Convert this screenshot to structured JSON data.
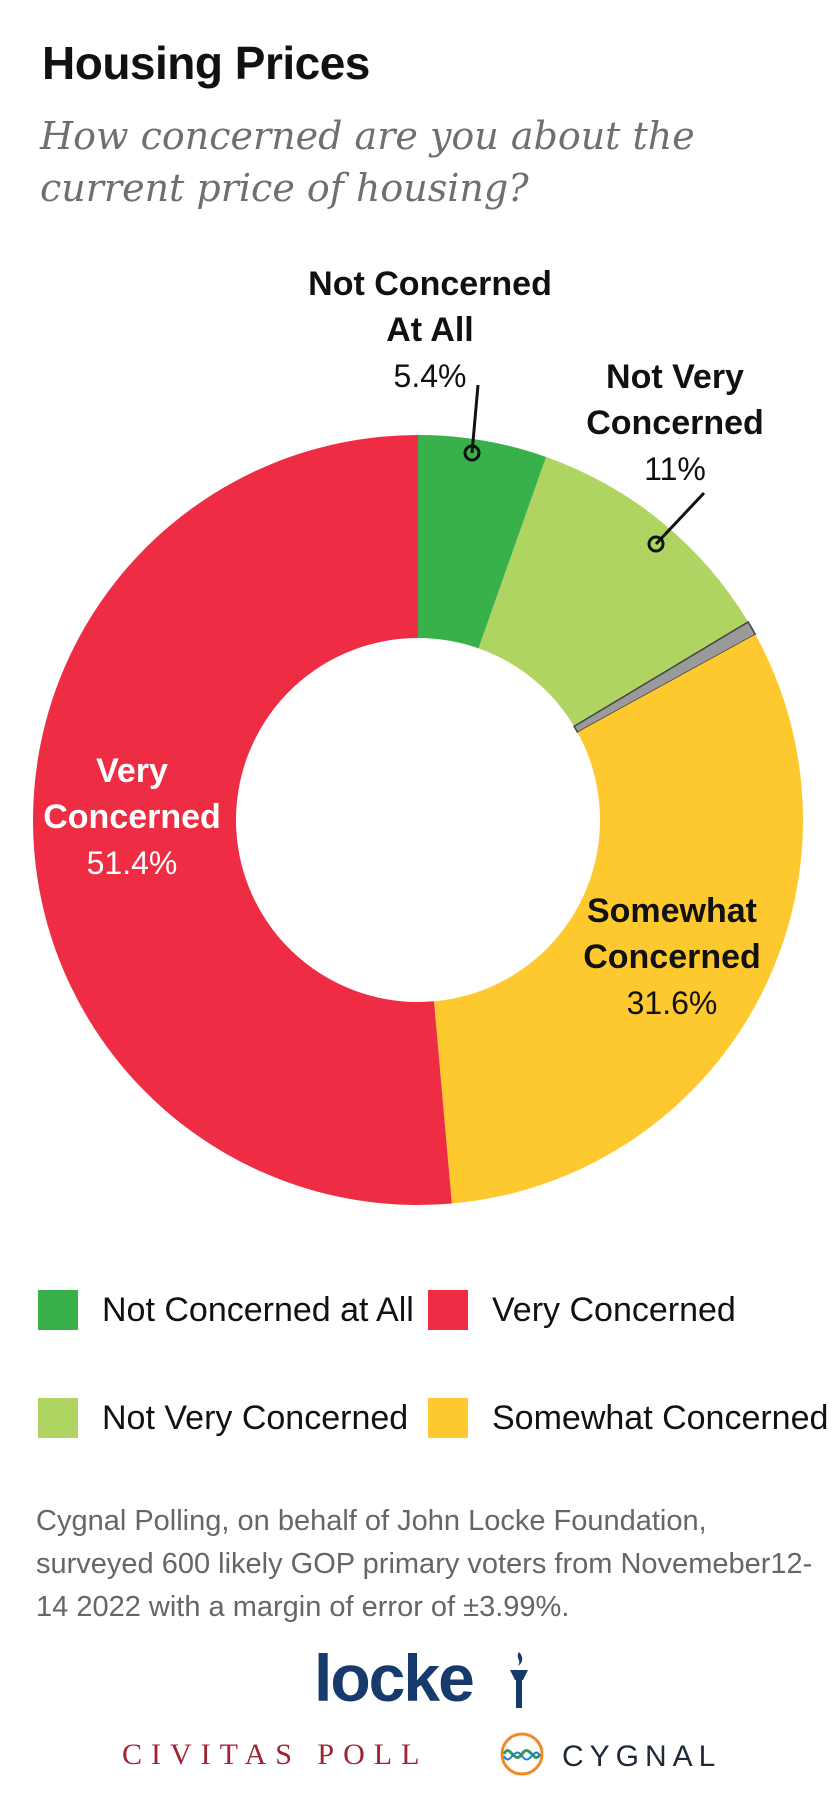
{
  "chart_data": {
    "type": "pie",
    "variant": "donut",
    "title": "Housing Prices",
    "subtitle": "How concerned are you about the current price of housing?",
    "slices": [
      {
        "key": "not_concerned_at_all",
        "label_lines": [
          "Not Concerned",
          "At All"
        ],
        "value_text": "5.4%",
        "value": 5.4,
        "color": "#39b14a",
        "label_color": "#111111",
        "legend": "Not Concerned at All"
      },
      {
        "key": "not_very_concerned",
        "label_lines": [
          "Not Very",
          "Concerned"
        ],
        "value_text": "11%",
        "value": 11.0,
        "color": "#b0d462",
        "label_color": "#111111",
        "legend": "Not Very Concerned"
      },
      {
        "key": "unsure",
        "label_lines": [],
        "value_text": "",
        "value": 0.6,
        "color": "#9a9a9a",
        "label_color": "#111111",
        "legend": ""
      },
      {
        "key": "somewhat_concerned",
        "label_lines": [
          "Somewhat",
          "Concerned"
        ],
        "value_text": "31.6%",
        "value": 31.6,
        "color": "#fec92f",
        "label_color": "#111111",
        "legend": "Somewhat Concerned"
      },
      {
        "key": "very_concerned",
        "label_lines": [
          "Very",
          "Concerned"
        ],
        "value_text": "51.4%",
        "value": 51.4,
        "color": "#ee2c43",
        "label_color": "#ffffff",
        "legend": "Very Concerned"
      }
    ],
    "legend_order": [
      "not_concerned_at_all",
      "very_concerned",
      "not_very_concerned",
      "somewhat_concerned"
    ],
    "legend_placement": "bottom"
  },
  "footnote": "Cygnal Polling, on behalf of John Locke Foundation, surveyed 600 likely GOP primary voters from Novemeber12-14 2022 with a margin of error of ±3.99%.",
  "logos": {
    "locke": "locke",
    "civitas": "CIVITAS POLL",
    "cygnal": "CYGNAL",
    "locke_color": "#163a6b",
    "civitas_color": "#9e2432"
  }
}
